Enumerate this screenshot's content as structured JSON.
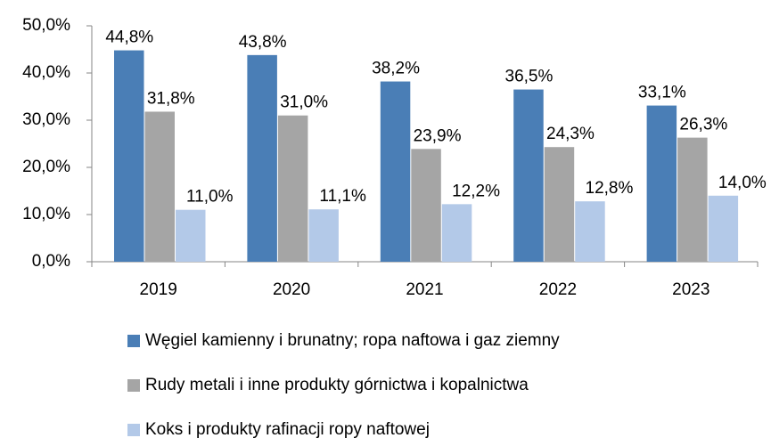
{
  "chart_data": {
    "type": "bar",
    "categories": [
      "2019",
      "2020",
      "2021",
      "2022",
      "2023"
    ],
    "series": [
      {
        "name": "Węgiel kamienny i brunatny; ropa naftowa i gaz ziemny",
        "color": "#4a7eb6",
        "values": [
          44.8,
          43.8,
          38.2,
          36.5,
          33.1
        ],
        "value_labels": [
          "44,8%",
          "43,8%",
          "38,2%",
          "36,5%",
          "33,1%"
        ]
      },
      {
        "name": "Rudy metali i inne produkty górnictwa i kopalnictwa",
        "color": "#a5a5a5",
        "values": [
          31.8,
          31.0,
          23.9,
          24.3,
          26.3
        ],
        "value_labels": [
          "31,8%",
          "31,0%",
          "23,9%",
          "24,3%",
          "26,3%"
        ]
      },
      {
        "name": "Koks i produkty rafinacji ropy naftowej",
        "color": "#b3c9e8",
        "values": [
          11.0,
          11.1,
          12.2,
          12.8,
          14.0
        ],
        "value_labels": [
          "11,0%",
          "11,1%",
          "12,2%",
          "12,8%",
          "14,0%"
        ]
      }
    ],
    "ylim": [
      0,
      50
    ],
    "yticks": [
      {
        "value": 0,
        "label": "0,0%"
      },
      {
        "value": 10,
        "label": "10,0%"
      },
      {
        "value": 20,
        "label": "20,0%"
      },
      {
        "value": 30,
        "label": "30,0%"
      },
      {
        "value": 40,
        "label": "40,0%"
      },
      {
        "value": 50,
        "label": "50,0%"
      }
    ],
    "legend": "bottom"
  }
}
